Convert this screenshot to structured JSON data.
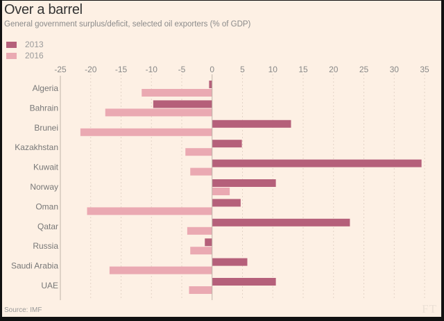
{
  "chart_data": {
    "type": "bar",
    "orientation": "horizontal",
    "title": "Over a barrel",
    "subtitle": "General government surplus/deficit, selected oil exporters (% of GDP)",
    "xlabel": "",
    "ylabel": "",
    "xlim": [
      -25,
      35
    ],
    "xticks": [
      -25,
      -20,
      -15,
      -10,
      -5,
      0,
      5,
      10,
      15,
      20,
      25,
      30,
      35
    ],
    "grid": true,
    "legend_position": "top-left",
    "categories": [
      "Algeria",
      "Bahrain",
      "Brunei",
      "Kazakhstan",
      "Kuwait",
      "Norway",
      "Oman",
      "Qatar",
      "Russia",
      "Saudi Arabia",
      "UAE"
    ],
    "series": [
      {
        "name": "2013",
        "color": "#b5607a",
        "values": [
          -0.5,
          -9.7,
          13.0,
          4.9,
          34.5,
          10.5,
          4.7,
          22.7,
          -1.2,
          5.8,
          10.5
        ]
      },
      {
        "name": "2016",
        "color": "#eaa9b2",
        "values": [
          -11.6,
          -17.6,
          -21.7,
          -4.4,
          -3.6,
          2.9,
          -20.6,
          -4.1,
          -3.6,
          -16.9,
          -3.8
        ]
      }
    ],
    "source": "Source: IMF"
  },
  "watermark": "FT",
  "colors": {
    "background": "#fdf0e4",
    "series_2013": "#b5607a",
    "series_2016": "#eaa9b2"
  }
}
